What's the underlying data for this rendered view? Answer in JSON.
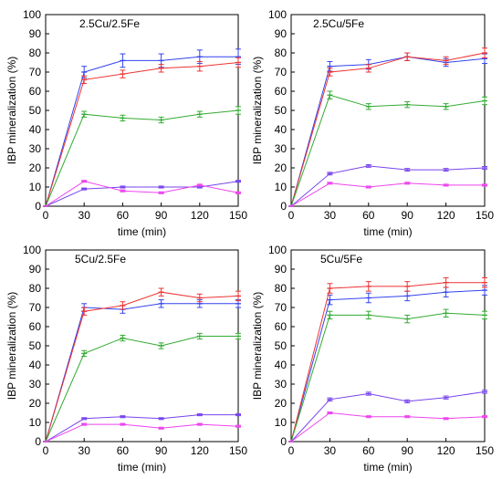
{
  "chart_data": [
    {
      "type": "line",
      "title": "2.5Cu/2.5Fe",
      "xlabel": "time (min)",
      "ylabel": "IBP mineralization (%)",
      "x": [
        0,
        30,
        60,
        90,
        120,
        150
      ],
      "xlim": [
        0,
        150
      ],
      "ylim": [
        0,
        100
      ],
      "xticks": [
        "0",
        "30",
        "60",
        "90",
        "120",
        "150"
      ],
      "yticks": [
        "0",
        "10",
        "20",
        "30",
        "40",
        "50",
        "60",
        "70",
        "80",
        "90",
        "100"
      ],
      "grid": false,
      "series": [
        {
          "color": "#3344ee",
          "values": [
            0,
            70,
            76,
            76,
            78,
            78
          ],
          "errors": [
            0,
            3,
            3.5,
            3.5,
            3.5,
            4
          ]
        },
        {
          "color": "#ee3333",
          "values": [
            0,
            66,
            69,
            72,
            73,
            75
          ],
          "errors": [
            0,
            2,
            2,
            2,
            2.5,
            2.5
          ]
        },
        {
          "color": "#33aa33",
          "values": [
            0,
            48,
            46,
            45,
            48,
            50
          ],
          "errors": [
            0,
            1.5,
            1.5,
            1.5,
            1.5,
            2
          ]
        },
        {
          "color": "#7744ee",
          "values": [
            0,
            9,
            10,
            10,
            10,
            13
          ],
          "errors": [
            0,
            0.5,
            0.5,
            0.5,
            0.5,
            0.5
          ]
        },
        {
          "color": "#ee44ee",
          "values": [
            0,
            13,
            8,
            7,
            11,
            7
          ],
          "errors": [
            0,
            0.5,
            0.5,
            0.5,
            0.5,
            0.5
          ]
        }
      ]
    },
    {
      "type": "line",
      "title": "2.5Cu/5Fe",
      "xlabel": "time (min)",
      "ylabel": "IBP mineralization (%)",
      "x": [
        0,
        30,
        60,
        90,
        120,
        150
      ],
      "xlim": [
        0,
        150
      ],
      "ylim": [
        0,
        100
      ],
      "xticks": [
        "0",
        "30",
        "60",
        "90",
        "120",
        "150"
      ],
      "yticks": [
        "0",
        "10",
        "20",
        "30",
        "40",
        "50",
        "60",
        "70",
        "80",
        "90",
        "100"
      ],
      "grid": false,
      "series": [
        {
          "color": "#3344ee",
          "values": [
            0,
            73,
            74,
            78,
            75,
            77
          ],
          "errors": [
            0,
            2.5,
            2.5,
            2,
            2,
            2.5
          ]
        },
        {
          "color": "#ee3333",
          "values": [
            0,
            70,
            72,
            78,
            76,
            80
          ],
          "errors": [
            0,
            2,
            2,
            2,
            2,
            2.5
          ]
        },
        {
          "color": "#33aa33",
          "values": [
            0,
            58,
            52,
            53,
            52,
            55
          ],
          "errors": [
            0,
            2,
            1.5,
            1.5,
            1.5,
            2
          ]
        },
        {
          "color": "#7744ee",
          "values": [
            0,
            17,
            21,
            19,
            19,
            20
          ],
          "errors": [
            0,
            0.7,
            0.7,
            0.7,
            0.7,
            0.7
          ]
        },
        {
          "color": "#ee44ee",
          "values": [
            0,
            12,
            10,
            12,
            11,
            11
          ],
          "errors": [
            0,
            0.5,
            0.5,
            0.5,
            0.5,
            0.5
          ]
        }
      ]
    },
    {
      "type": "line",
      "title": "5Cu/2.5Fe",
      "xlabel": "time (min)",
      "ylabel": "IBP mineralization (%)",
      "x": [
        0,
        30,
        60,
        90,
        120,
        150
      ],
      "xlim": [
        0,
        150
      ],
      "ylim": [
        0,
        100
      ],
      "xticks": [
        "0",
        "30",
        "60",
        "90",
        "120",
        "150"
      ],
      "yticks": [
        "0",
        "10",
        "20",
        "30",
        "40",
        "50",
        "60",
        "70",
        "80",
        "90",
        "100"
      ],
      "grid": false,
      "series": [
        {
          "color": "#3344ee",
          "values": [
            0,
            70,
            69,
            72,
            72,
            72
          ],
          "errors": [
            0,
            2,
            2,
            2,
            2,
            2
          ]
        },
        {
          "color": "#ee3333",
          "values": [
            0,
            68,
            71,
            78,
            75,
            76
          ],
          "errors": [
            0,
            2,
            2,
            2,
            2,
            2.5
          ]
        },
        {
          "color": "#33aa33",
          "values": [
            0,
            46,
            54,
            50,
            55,
            55
          ],
          "errors": [
            0,
            1.5,
            1.5,
            1.5,
            1.5,
            1.5
          ]
        },
        {
          "color": "#7744ee",
          "values": [
            0,
            12,
            13,
            12,
            14,
            14
          ],
          "errors": [
            0,
            0.5,
            0.5,
            0.5,
            0.5,
            0.5
          ]
        },
        {
          "color": "#ee44ee",
          "values": [
            0,
            9,
            9,
            7,
            9,
            8
          ],
          "errors": [
            0,
            0.5,
            0.5,
            0.5,
            0.5,
            0.5
          ]
        }
      ]
    },
    {
      "type": "line",
      "title": "5Cu/5Fe",
      "xlabel": "time (min)",
      "ylabel": "IBP mineralization (%)",
      "x": [
        0,
        30,
        60,
        90,
        120,
        150
      ],
      "xlim": [
        0,
        150
      ],
      "ylim": [
        0,
        100
      ],
      "xticks": [
        "0",
        "30",
        "60",
        "90",
        "120",
        "150"
      ],
      "yticks": [
        "0",
        "10",
        "20",
        "30",
        "40",
        "50",
        "60",
        "70",
        "80",
        "90",
        "100"
      ],
      "grid": false,
      "series": [
        {
          "color": "#3344ee",
          "values": [
            0,
            74,
            75,
            76,
            78,
            79
          ],
          "errors": [
            0,
            2.5,
            2.5,
            2.5,
            2.5,
            2.5
          ]
        },
        {
          "color": "#ee3333",
          "values": [
            0,
            80,
            81,
            81,
            83,
            83
          ],
          "errors": [
            0,
            2.5,
            2.5,
            2.5,
            2.5,
            2.5
          ]
        },
        {
          "color": "#33aa33",
          "values": [
            0,
            66,
            66,
            64,
            67,
            66
          ],
          "errors": [
            0,
            2,
            2,
            2,
            2,
            2
          ]
        },
        {
          "color": "#7744ee",
          "values": [
            0,
            22,
            25,
            21,
            23,
            26
          ],
          "errors": [
            0,
            0.8,
            0.8,
            0.8,
            0.8,
            0.8
          ]
        },
        {
          "color": "#ee44ee",
          "values": [
            0,
            15,
            13,
            13,
            12,
            13
          ],
          "errors": [
            0,
            0.5,
            0.5,
            0.5,
            0.5,
            0.5
          ]
        }
      ]
    }
  ]
}
